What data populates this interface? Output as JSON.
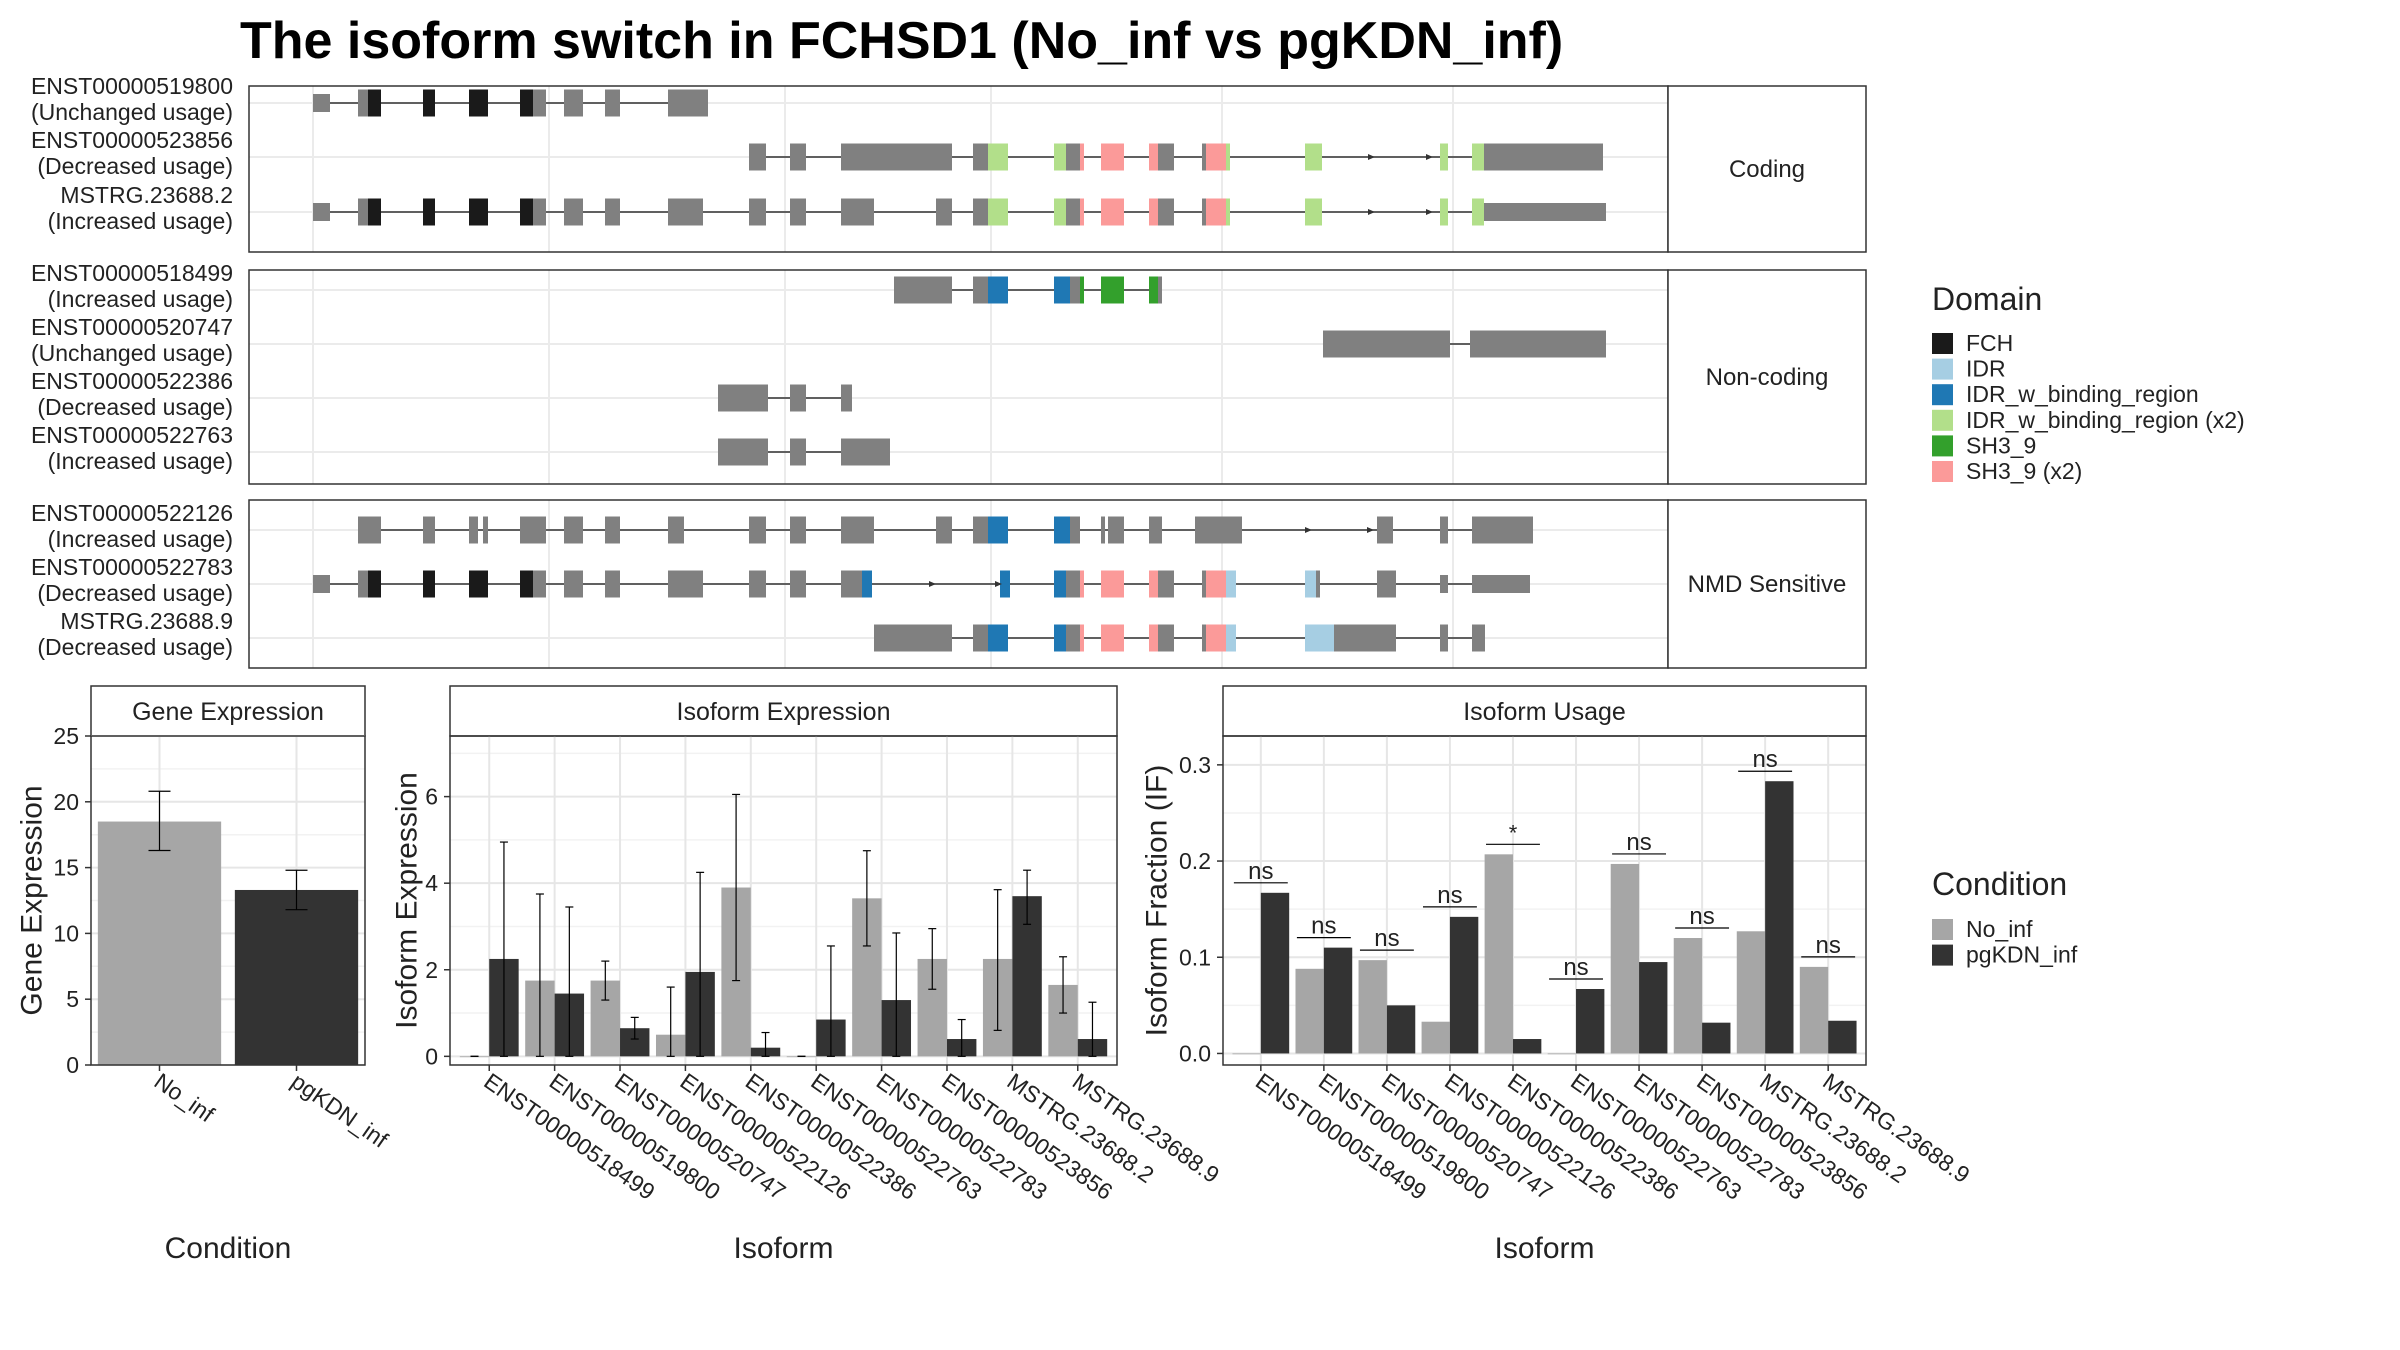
{
  "title": "The isoform switch in FCHSD1 (No_inf vs pgKDN_inf)",
  "colors": {
    "FCH": "#1a1a1a",
    "IDR": "#a6cee3",
    "IDR_w_binding_region": "#1f78b4",
    "IDR_w_binding_region (x2)": "#b2df8a",
    "SH3_9": "#33a02c",
    "SH3_9 (x2)": "#fb9a99",
    "exon": "#808080",
    "No_inf": "#a6a6a6",
    "pgKDN_inf": "#333333"
  },
  "structure_panels": [
    {
      "strip": "Coding",
      "tracks": [
        {
          "id": "ENST00000519800",
          "status": "(Unchanged usage)"
        },
        {
          "id": "ENST00000523856",
          "status": "(Decreased usage)"
        },
        {
          "id": "MSTRG.23688.2",
          "status": "(Increased usage)"
        }
      ]
    },
    {
      "strip": "Non-coding",
      "tracks": [
        {
          "id": "ENST00000518499",
          "status": "(Increased usage)"
        },
        {
          "id": "ENST00000520747",
          "status": "(Unchanged usage)"
        },
        {
          "id": "ENST00000522386",
          "status": "(Decreased usage)"
        },
        {
          "id": "ENST00000522763",
          "status": "(Increased usage)"
        }
      ]
    },
    {
      "strip": "NMD Sensitive",
      "tracks": [
        {
          "id": "ENST00000522126",
          "status": "(Increased usage)"
        },
        {
          "id": "ENST00000522783",
          "status": "(Decreased usage)"
        },
        {
          "id": "MSTRG.23688.9",
          "status": "(Decreased usage)"
        }
      ]
    }
  ],
  "domain_legend": {
    "title": "Domain",
    "items": [
      "FCH",
      "IDR",
      "IDR_w_binding_region",
      "IDR_w_binding_region (x2)",
      "SH3_9",
      "SH3_9 (x2)"
    ]
  },
  "condition_legend": {
    "title": "Condition",
    "items": [
      "No_inf",
      "pgKDN_inf"
    ]
  },
  "chart_data": [
    {
      "type": "bar",
      "title": "Gene Expression",
      "xlabel": "Condition",
      "ylabel": "Gene Expression",
      "categories": [
        "No_inf",
        "pgKDN_inf"
      ],
      "values": [
        18.5,
        13.3
      ],
      "errors": [
        [
          16.3,
          20.8
        ],
        [
          11.8,
          14.8
        ]
      ],
      "ylim": [
        0,
        25
      ],
      "yticks": [
        0,
        5,
        10,
        15,
        20,
        25
      ]
    },
    {
      "type": "bar",
      "title": "Isoform Expression",
      "xlabel": "Isoform",
      "ylabel": "Isoform Expression",
      "categories": [
        "ENST00000518499",
        "ENST00000519800",
        "ENST00000520747",
        "ENST00000522126",
        "ENST00000522386",
        "ENST00000522763",
        "ENST00000522783",
        "ENST00000523856",
        "MSTRG.23688.2",
        "MSTRG.23688.9"
      ],
      "series": [
        {
          "name": "No_inf",
          "values": [
            0,
            1.75,
            1.75,
            0.5,
            3.9,
            0,
            3.65,
            2.25,
            2.25,
            1.65
          ],
          "errors": [
            [
              0,
              0
            ],
            [
              0,
              3.75
            ],
            [
              1.3,
              2.2
            ],
            [
              0,
              1.6
            ],
            [
              1.75,
              6.05
            ],
            [
              0,
              0
            ],
            [
              2.55,
              4.75
            ],
            [
              1.55,
              2.95
            ],
            [
              0.6,
              3.85
            ],
            [
              1.0,
              2.3
            ]
          ]
        },
        {
          "name": "pgKDN_inf",
          "values": [
            2.25,
            1.45,
            0.65,
            1.95,
            0.2,
            0.85,
            1.3,
            0.4,
            3.7,
            0.4
          ],
          "errors": [
            [
              0,
              4.95
            ],
            [
              0,
              3.45
            ],
            [
              0.4,
              0.9
            ],
            [
              0,
              4.25
            ],
            [
              0,
              0.55
            ],
            [
              0,
              2.55
            ],
            [
              0,
              2.85
            ],
            [
              0,
              0.85
            ],
            [
              3.05,
              4.3
            ],
            [
              0,
              1.25
            ]
          ]
        }
      ],
      "ylim": [
        -0.2,
        7.4
      ],
      "yticks": [
        0,
        2,
        4,
        6
      ]
    },
    {
      "type": "bar",
      "title": "Isoform Usage",
      "xlabel": "Isoform",
      "ylabel": "Isoform Fraction (IF)",
      "categories": [
        "ENST00000518499",
        "ENST00000519800",
        "ENST00000520747",
        "ENST00000522126",
        "ENST00000522386",
        "ENST00000522763",
        "ENST00000522783",
        "ENST00000523856",
        "MSTRG.23688.2",
        "MSTRG.23688.9"
      ],
      "series": [
        {
          "name": "No_inf",
          "values": [
            0,
            0.088,
            0.097,
            0.033,
            0.207,
            0,
            0.197,
            0.12,
            0.127,
            0.09
          ]
        },
        {
          "name": "pgKDN_inf",
          "values": [
            0.167,
            0.11,
            0.05,
            0.142,
            0.015,
            0.067,
            0.095,
            0.032,
            0.283,
            0.034
          ]
        }
      ],
      "significance": [
        "ns",
        "ns",
        "ns",
        "ns",
        "*",
        "ns",
        "ns",
        "ns",
        "ns",
        "ns"
      ],
      "ylim": [
        -0.012,
        0.33
      ],
      "yticks": [
        0.0,
        0.1,
        0.2,
        0.3
      ]
    }
  ]
}
